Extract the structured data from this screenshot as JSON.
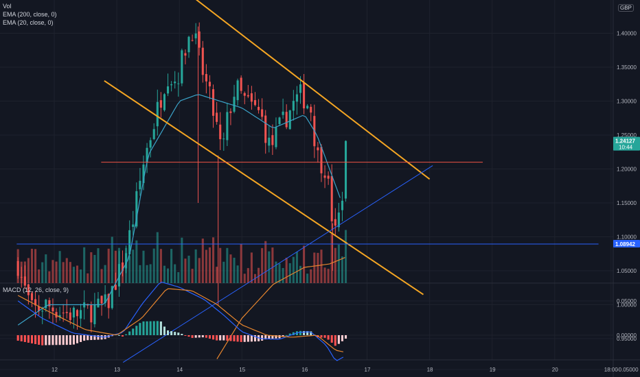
{
  "legend": {
    "vol": "Vol",
    "ema200": "EMA (200, close, 0)",
    "ema20": "EMA (20, close, 0)",
    "macd": "MACD (12, 26, close, 9)",
    "currency": "GBP"
  },
  "colors": {
    "background": "#131722",
    "grid": "#1e222d",
    "up": "#26a69a",
    "down": "#ef5350",
    "trendline": "#f5a623",
    "hline": "#f05545",
    "blue": "#2962ff",
    "ema20": "#3ba3c9",
    "ema200": "#e8862e"
  },
  "chart_data": [
    {
      "type": "candlestick",
      "title": "",
      "x_ticks": [
        "12",
        "13",
        "14",
        "15",
        "16",
        "17",
        "18",
        "19",
        "20",
        "18:00"
      ],
      "y_ticks": [
        "0.95000",
        "1.00000",
        "1.05000",
        "1.10000",
        "1.15000",
        "1.20000",
        "1.25000",
        "1.30000",
        "1.35000",
        "1.40000"
      ],
      "ylim": [
        0.915,
        1.445
      ],
      "grid": true,
      "price_labels": [
        {
          "value": "1.24127",
          "sub": "10:44",
          "price": 1.24127,
          "color": "#26a69a"
        },
        {
          "value": "1.08942",
          "sub": "",
          "price": 1.08942,
          "color": "#2962ff"
        }
      ],
      "ohlc_anchors": [
        {
          "day": 11.42,
          "close": 1.06
        },
        {
          "day": 11.5,
          "close": 1.03
        },
        {
          "day": 11.65,
          "close": 0.99
        },
        {
          "day": 11.85,
          "close": 1.0
        },
        {
          "day": 12.1,
          "close": 0.99
        },
        {
          "day": 12.3,
          "close": 0.985
        },
        {
          "day": 12.55,
          "close": 0.99
        },
        {
          "day": 12.85,
          "close": 1.0
        },
        {
          "day": 13.0,
          "close": 1.04
        },
        {
          "day": 13.1,
          "close": 1.06
        },
        {
          "day": 13.25,
          "close": 1.12
        },
        {
          "day": 13.45,
          "close": 1.22
        },
        {
          "day": 13.6,
          "close": 1.27
        },
        {
          "day": 13.8,
          "close": 1.34
        },
        {
          "day": 13.95,
          "close": 1.33
        },
        {
          "day": 14.1,
          "close": 1.38
        },
        {
          "day": 14.2,
          "close": 1.41
        },
        {
          "day": 14.35,
          "close": 1.35
        },
        {
          "day": 14.5,
          "close": 1.3
        },
        {
          "day": 14.6,
          "close": 1.26
        },
        {
          "day": 14.68,
          "close": 1.22
        },
        {
          "day": 14.78,
          "close": 1.28
        },
        {
          "day": 14.9,
          "close": 1.32
        },
        {
          "day": 15.05,
          "close": 1.3
        },
        {
          "day": 15.3,
          "close": 1.28
        },
        {
          "day": 15.45,
          "close": 1.23
        },
        {
          "day": 15.6,
          "close": 1.26
        },
        {
          "day": 15.85,
          "close": 1.3
        },
        {
          "day": 15.95,
          "close": 1.31
        },
        {
          "day": 16.1,
          "close": 1.29
        },
        {
          "day": 16.2,
          "close": 1.22
        },
        {
          "day": 16.35,
          "close": 1.2
        },
        {
          "day": 16.42,
          "close": 1.14
        },
        {
          "day": 16.5,
          "close": 1.1
        },
        {
          "day": 16.6,
          "close": 1.16
        },
        {
          "day": 16.66,
          "close": 1.23
        }
      ],
      "ema20_anchors": [
        {
          "day": 11.42,
          "value": 0.97
        },
        {
          "day": 11.9,
          "value": 1.0
        },
        {
          "day": 12.8,
          "value": 1.0
        },
        {
          "day": 13.2,
          "value": 1.07
        },
        {
          "day": 13.5,
          "value": 1.22
        },
        {
          "day": 14.0,
          "value": 1.3
        },
        {
          "day": 14.3,
          "value": 1.31
        },
        {
          "day": 15.0,
          "value": 1.29
        },
        {
          "day": 15.5,
          "value": 1.26
        },
        {
          "day": 16.0,
          "value": 1.28
        },
        {
          "day": 16.2,
          "value": 1.25
        },
        {
          "day": 16.4,
          "value": 1.2
        },
        {
          "day": 16.6,
          "value": 1.15
        }
      ],
      "ema200_anchors": [
        {
          "day": 14.6,
          "value": 0.92
        },
        {
          "day": 15.0,
          "value": 0.98
        },
        {
          "day": 15.5,
          "value": 1.03
        },
        {
          "day": 16.0,
          "value": 1.055
        },
        {
          "day": 16.4,
          "value": 1.06
        },
        {
          "day": 16.66,
          "value": 1.07
        }
      ],
      "trendlines": [
        {
          "kind": "channel-top",
          "from": {
            "day": 13.7,
            "price": 1.49
          },
          "to": {
            "day": 18.0,
            "price": 1.185
          }
        },
        {
          "kind": "channel-bottom",
          "from": {
            "day": 12.8,
            "price": 1.33
          },
          "to": {
            "day": 17.9,
            "price": 1.015
          }
        },
        {
          "kind": "horizontal-resistance",
          "from": {
            "day": 12.75,
            "price": 1.21
          },
          "to": {
            "day": 18.85,
            "price": 1.21
          }
        },
        {
          "kind": "rising-support",
          "from": {
            "day": 13.1,
            "price": 0.915
          },
          "to": {
            "day": 18.05,
            "price": 1.205
          }
        },
        {
          "kind": "horizontal-price",
          "from": {
            "day": 11.4,
            "price": 1.08942
          },
          "to": {
            "day": 20.7,
            "price": 1.08942
          }
        }
      ],
      "volume_bars": 95
    },
    {
      "type": "macd",
      "title": "MACD (12, 26, close, 9)",
      "y_ticks": [
        "-0.05000",
        "0.00000",
        "0.05000"
      ],
      "ylim": [
        -0.058,
        0.085
      ],
      "macd_anchors": [
        {
          "day": 11.42,
          "value": 0.05
        },
        {
          "day": 11.8,
          "value": 0.025
        },
        {
          "day": 12.3,
          "value": 0.003
        },
        {
          "day": 12.8,
          "value": -0.003
        },
        {
          "day": 13.1,
          "value": 0.004
        },
        {
          "day": 13.4,
          "value": 0.045
        },
        {
          "day": 13.7,
          "value": 0.078
        },
        {
          "day": 14.0,
          "value": 0.07
        },
        {
          "day": 14.4,
          "value": 0.052
        },
        {
          "day": 14.7,
          "value": 0.03
        },
        {
          "day": 15.0,
          "value": 0.005
        },
        {
          "day": 15.3,
          "value": -0.005
        },
        {
          "day": 15.6,
          "value": -0.006
        },
        {
          "day": 15.9,
          "value": 0.004
        },
        {
          "day": 16.1,
          "value": 0.005
        },
        {
          "day": 16.35,
          "value": -0.015
        },
        {
          "day": 16.5,
          "value": -0.038
        },
        {
          "day": 16.66,
          "value": -0.03
        }
      ],
      "signal_anchors": [
        {
          "day": 11.42,
          "value": 0.058
        },
        {
          "day": 11.9,
          "value": 0.035
        },
        {
          "day": 12.5,
          "value": 0.008
        },
        {
          "day": 13.0,
          "value": 0.0
        },
        {
          "day": 13.4,
          "value": 0.025
        },
        {
          "day": 13.8,
          "value": 0.068
        },
        {
          "day": 14.2,
          "value": 0.065
        },
        {
          "day": 14.6,
          "value": 0.045
        },
        {
          "day": 15.0,
          "value": 0.015
        },
        {
          "day": 15.4,
          "value": 0.0
        },
        {
          "day": 15.8,
          "value": -0.003
        },
        {
          "day": 16.2,
          "value": 0.0
        },
        {
          "day": 16.5,
          "value": -0.022
        },
        {
          "day": 16.66,
          "value": -0.025
        }
      ]
    }
  ]
}
